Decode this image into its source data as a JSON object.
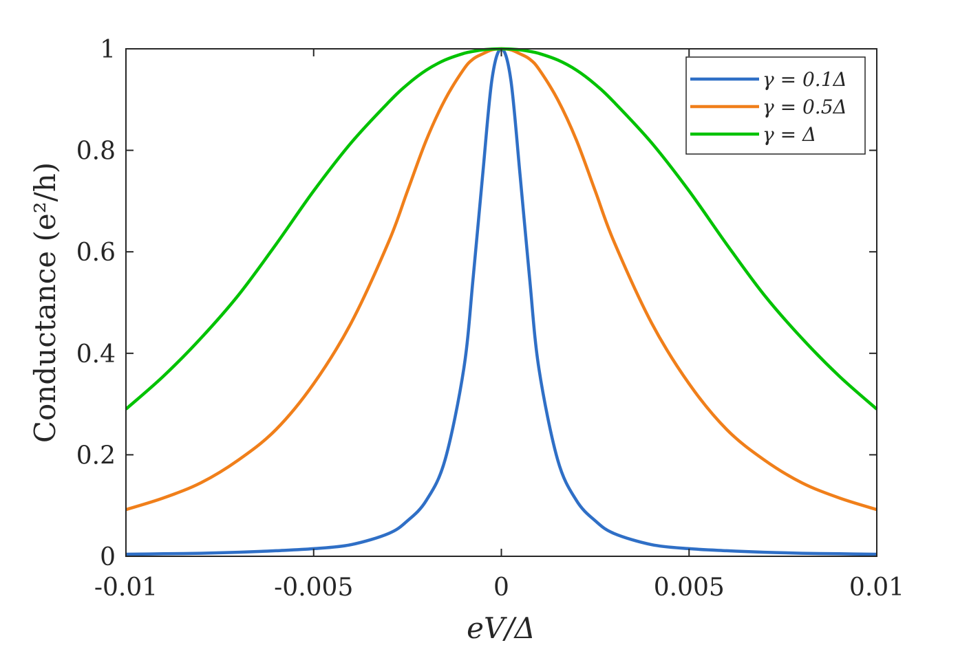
{
  "chart_data": {
    "type": "line",
    "title": "",
    "xlabel": "eV/Δ",
    "ylabel": "Conductance (e²/h)",
    "xlim": [
      -0.01,
      0.01
    ],
    "ylim": [
      0,
      1
    ],
    "x_ticks": [
      "-0.01",
      "-0.005",
      "0",
      "0.005",
      "0.01"
    ],
    "y_ticks": [
      "0",
      "0.2",
      "0.4",
      "0.6",
      "0.8",
      "1"
    ],
    "grid": false,
    "legend_position": "top-right",
    "x": [
      -0.01,
      -0.009,
      -0.008,
      -0.007,
      -0.006,
      -0.005,
      -0.004,
      -0.003,
      -0.0025,
      -0.002,
      -0.0015,
      -0.001,
      -0.00075,
      -0.0005,
      -0.00025,
      0,
      0.00025,
      0.0005,
      0.00075,
      0.001,
      0.0015,
      0.002,
      0.0025,
      0.003,
      0.004,
      0.005,
      0.006,
      0.007,
      0.008,
      0.009,
      0.01
    ],
    "series": [
      {
        "name": "γ = 0.1Δ",
        "color": "#2f6fc6",
        "values": [
          0.004,
          0.005,
          0.006,
          0.008,
          0.011,
          0.015,
          0.023,
          0.045,
          0.07,
          0.11,
          0.19,
          0.37,
          0.55,
          0.75,
          0.94,
          1.0,
          0.94,
          0.75,
          0.55,
          0.37,
          0.19,
          0.11,
          0.07,
          0.045,
          0.023,
          0.015,
          0.011,
          0.008,
          0.006,
          0.005,
          0.004
        ]
      },
      {
        "name": "γ = 0.5Δ",
        "color": "#f07f1a",
        "values": [
          0.092,
          0.115,
          0.145,
          0.19,
          0.25,
          0.34,
          0.46,
          0.62,
          0.72,
          0.82,
          0.9,
          0.96,
          0.98,
          0.99,
          0.998,
          1.0,
          0.998,
          0.99,
          0.98,
          0.96,
          0.9,
          0.82,
          0.72,
          0.62,
          0.46,
          0.34,
          0.25,
          0.19,
          0.145,
          0.115,
          0.092
        ]
      },
      {
        "name": "γ = Δ",
        "color": "#00c200",
        "values": [
          0.29,
          0.355,
          0.43,
          0.515,
          0.615,
          0.72,
          0.815,
          0.895,
          0.93,
          0.958,
          0.978,
          0.991,
          0.995,
          0.998,
          0.9995,
          1.0,
          0.9995,
          0.998,
          0.995,
          0.991,
          0.978,
          0.958,
          0.93,
          0.895,
          0.815,
          0.72,
          0.615,
          0.515,
          0.43,
          0.355,
          0.29
        ]
      }
    ]
  }
}
